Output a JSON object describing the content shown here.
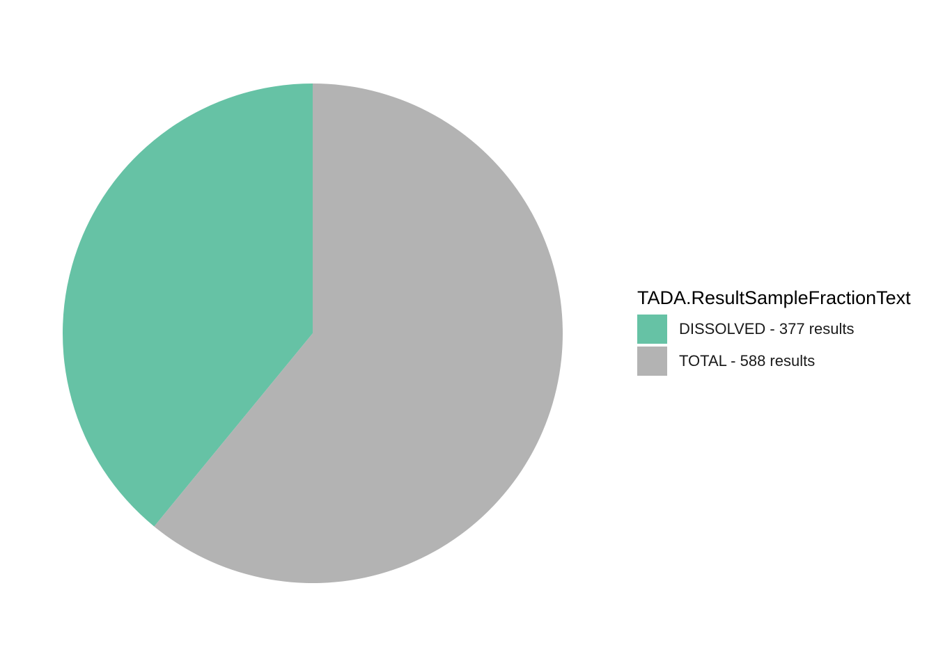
{
  "chart_data": {
    "type": "pie",
    "title": "",
    "legend_title": "TADA.ResultSampleFractionText",
    "legend_position": "right",
    "start_angle": "12 o'clock",
    "direction": "counterclockwise",
    "slices": [
      {
        "label": "DISSOLVED - 377 results",
        "category": "DISSOLVED",
        "value": 377,
        "color": "#66C2A5"
      },
      {
        "label": "TOTAL - 588 results",
        "category": "TOTAL",
        "value": 588,
        "color": "#B3B3B3"
      }
    ]
  }
}
